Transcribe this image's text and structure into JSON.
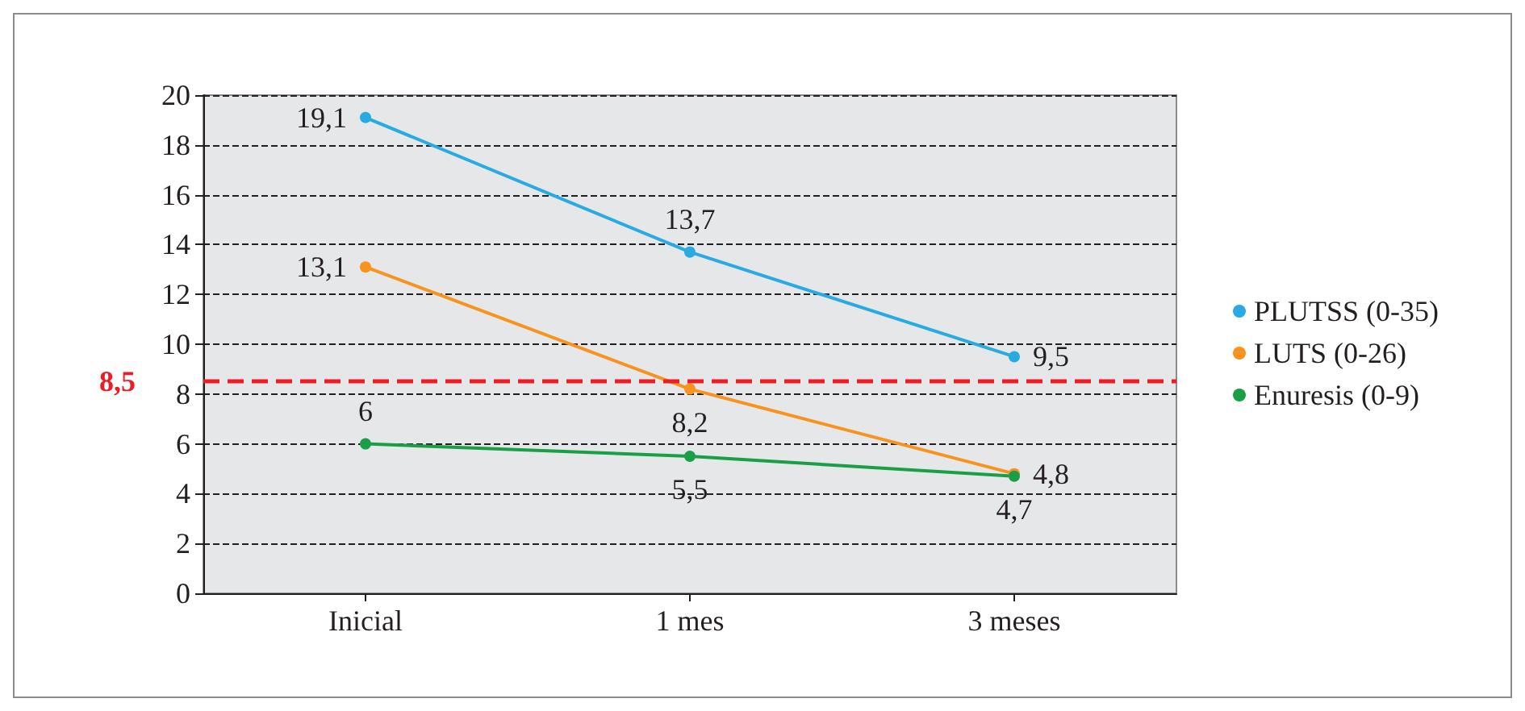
{
  "chart_data": {
    "type": "line",
    "categories": [
      "Inicial",
      "1 mes",
      "3 meses"
    ],
    "series": [
      {
        "name": "PLUTSS (0-35)",
        "color": "#29abe2",
        "values": [
          19.1,
          13.7,
          9.5
        ],
        "value_labels": [
          "19,1",
          "13,7",
          "9,5"
        ]
      },
      {
        "name": "LUTS (0-26)",
        "color": "#f7931e",
        "values": [
          13.1,
          8.2,
          4.8
        ],
        "value_labels": [
          "13,1",
          "8,2",
          "4,8"
        ]
      },
      {
        "name": "Enuresis (0-9)",
        "color": "#1a9f48",
        "values": [
          6,
          5.5,
          4.7
        ],
        "value_labels": [
          "6",
          "5,5",
          "4,7"
        ]
      }
    ],
    "ylim": [
      0,
      20
    ],
    "yticks": [
      0,
      2,
      4,
      6,
      8,
      10,
      12,
      14,
      16,
      18,
      20
    ],
    "grid": "y",
    "legend": "right",
    "marker": "circle",
    "line_style": "solid",
    "ref_lines": [
      {
        "axis": "y",
        "value": 8.5,
        "label": "8,5",
        "color": "#ee1c25",
        "line_style": "dashed"
      }
    ]
  }
}
